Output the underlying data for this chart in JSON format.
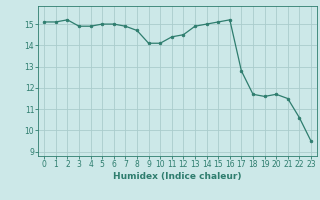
{
  "x": [
    0,
    1,
    2,
    3,
    4,
    5,
    6,
    7,
    8,
    9,
    10,
    11,
    12,
    13,
    14,
    15,
    16,
    17,
    18,
    19,
    20,
    21,
    22,
    23
  ],
  "y": [
    15.1,
    15.1,
    15.2,
    14.9,
    14.9,
    15.0,
    15.0,
    14.9,
    14.7,
    14.1,
    14.1,
    14.4,
    14.5,
    14.9,
    15.0,
    15.1,
    15.2,
    12.8,
    11.7,
    11.6,
    11.7,
    11.5,
    10.6,
    9.5
  ],
  "title": "",
  "xlabel": "Humidex (Indice chaleur)",
  "ylabel": "",
  "xlim": [
    -0.5,
    23.5
  ],
  "ylim": [
    8.8,
    15.85
  ],
  "yticks": [
    9,
    10,
    11,
    12,
    13,
    14,
    15
  ],
  "xticks": [
    0,
    1,
    2,
    3,
    4,
    5,
    6,
    7,
    8,
    9,
    10,
    11,
    12,
    13,
    14,
    15,
    16,
    17,
    18,
    19,
    20,
    21,
    22,
    23
  ],
  "line_color": "#2e7d6e",
  "marker_color": "#2e7d6e",
  "bg_color": "#cce8e8",
  "grid_color": "#aacccc",
  "label_fontsize": 6.5,
  "tick_fontsize": 5.5
}
